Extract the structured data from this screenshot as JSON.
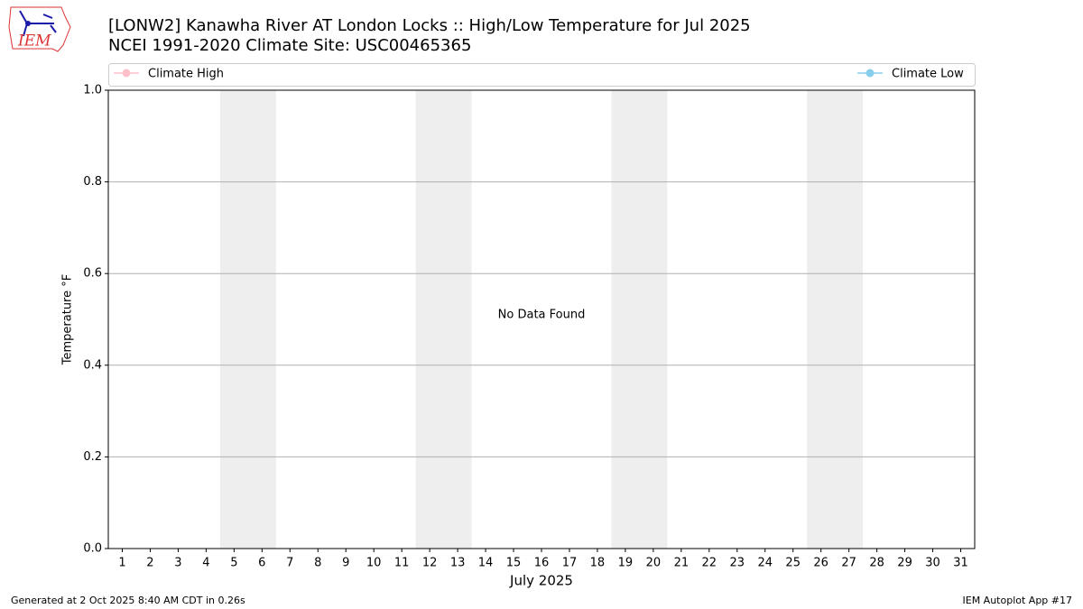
{
  "chart_data": {
    "type": "line",
    "title": "[LONW2] Kanawha River  AT London Locks :: High/Low Temperature for Jul 2025",
    "subtitle": "NCEI 1991-2020 Climate Site: USC00465365",
    "x": [
      1,
      2,
      3,
      4,
      5,
      6,
      7,
      8,
      9,
      10,
      11,
      12,
      13,
      14,
      15,
      16,
      17,
      18,
      19,
      20,
      21,
      22,
      23,
      24,
      25,
      26,
      27,
      28,
      29,
      30,
      31
    ],
    "xlim": [
      0.5,
      31.5
    ],
    "xticks": [
      1,
      2,
      3,
      4,
      5,
      6,
      7,
      8,
      9,
      10,
      11,
      12,
      13,
      14,
      15,
      16,
      17,
      18,
      19,
      20,
      21,
      22,
      23,
      24,
      25,
      26,
      27,
      28,
      29,
      30,
      31
    ],
    "x_label": "July 2025",
    "y_label": "Temperature °F",
    "ylim": [
      0,
      1
    ],
    "yticks": [
      {
        "value": 0,
        "label": "0.0"
      },
      {
        "value": 0.2,
        "label": "0.2"
      },
      {
        "value": 0.4,
        "label": "0.4"
      },
      {
        "value": 0.6,
        "label": "0.6"
      },
      {
        "value": 0.8,
        "label": "0.8"
      },
      {
        "value": 1,
        "label": "1.0"
      }
    ],
    "grid": true,
    "shaded": [
      [
        5,
        6
      ],
      [
        12,
        13
      ],
      [
        19,
        20
      ],
      [
        26,
        27
      ]
    ],
    "shade_color": "#eeeeee",
    "series": [
      {
        "name": "Climate High",
        "color": "#ffc0cb",
        "values": [
          null,
          null,
          null,
          null,
          null,
          null,
          null,
          null,
          null,
          null,
          null,
          null,
          null,
          null,
          null,
          null,
          null,
          null,
          null,
          null,
          null,
          null,
          null,
          null,
          null,
          null,
          null,
          null,
          null,
          null,
          null
        ]
      },
      {
        "name": "Climate Low",
        "color": "#87ceeb",
        "values": [
          null,
          null,
          null,
          null,
          null,
          null,
          null,
          null,
          null,
          null,
          null,
          null,
          null,
          null,
          null,
          null,
          null,
          null,
          null,
          null,
          null,
          null,
          null,
          null,
          null,
          null,
          null,
          null,
          null,
          null,
          null
        ]
      }
    ],
    "annotation": "No Data Found",
    "footer_left": "Generated at 2 Oct 2025 8:40 AM CDT in 0.26s",
    "footer_right": "IEM Autoplot App #17",
    "logo_text": "IEM"
  }
}
